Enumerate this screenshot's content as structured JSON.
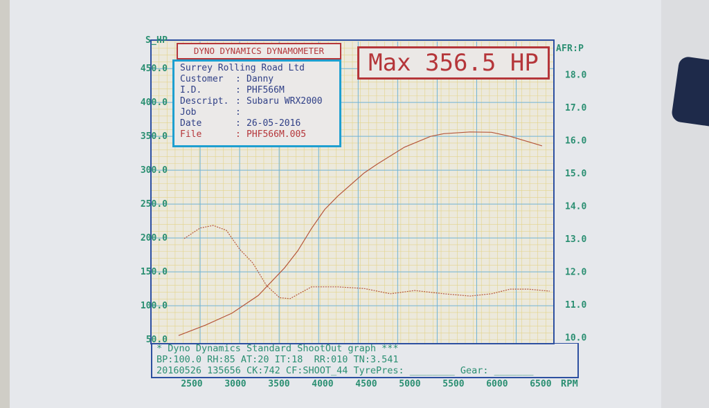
{
  "header": {
    "title": "DYNO DYNAMICS DYNAMOMETER",
    "max_label": "Max 356.5 HP"
  },
  "info": {
    "company": "Surrey Rolling Road Ltd",
    "rows": [
      {
        "label": "Customer",
        "value": "Danny"
      },
      {
        "label": "I.D.",
        "value": "PHF566M"
      },
      {
        "label": "Descript.",
        "value": "Subaru WRX2000"
      },
      {
        "label": "Job",
        "value": ""
      },
      {
        "label": "Date",
        "value": "26-05-2016"
      },
      {
        "label": "File",
        "value": "PHF566M.005"
      }
    ]
  },
  "footer": {
    "line1": "* Dyno Dynamics Standard ShootOut graph ***",
    "line2": "BP:100.0 RH:85 AT:20 IT:18  RR:010 TN:3.541",
    "line3": "20160526 135656 CK:742 CF:SHOOT_44 TyrePres: ________ Gear: _______"
  },
  "colors": {
    "frame": "#2c4fa0",
    "major_grid": "#6fb3d6",
    "minor_grid": "#e3d38a",
    "curve": "#b5563a",
    "axis_text": "#2b8f72",
    "highlight": "#b5363a",
    "info_border": "#1e9fd0"
  },
  "chart_data": {
    "type": "line",
    "xlabel": "RPM",
    "ylabel_left": "S_HP",
    "ylabel_right": "AFR:P",
    "xlim": [
      2000,
      6620
    ],
    "ylim_left": [
      44,
      490
    ],
    "ylim_right": [
      9.8,
      19.0
    ],
    "grid": true,
    "x_ticks": [
      "2500",
      "3000",
      "3500",
      "4000",
      "4500",
      "5000",
      "5500",
      "6000",
      "6500"
    ],
    "y_left_ticks": [
      "450.0",
      "400.0",
      "350.0",
      "300.0",
      "250.0",
      "200.0",
      "150.0",
      "100.0",
      "50.0"
    ],
    "y_right_ticks": [
      "18.0",
      "17.0",
      "16.0",
      "15.0",
      "14.0",
      "13.0",
      "12.0",
      "11.0",
      "10.0"
    ],
    "series": [
      {
        "axis": "left",
        "style": "solid",
        "x": [
          2317,
          2627,
          2929,
          3230,
          3532,
          3683,
          3841,
          3992,
          4143,
          4444,
          4595,
          4905,
          5206,
          5357,
          5659,
          5905,
          6119,
          6484
        ],
        "y": [
          56,
          71.5,
          89,
          115,
          156,
          181,
          214,
          242,
          262,
          296,
          309,
          334,
          350,
          354,
          356.5,
          356,
          350,
          336
        ]
      },
      {
        "axis": "right",
        "style": "dashed",
        "x": [
          2381,
          2563,
          2714,
          2865,
          3016,
          3167,
          3325,
          3476,
          3595,
          3841,
          4143,
          4444,
          4746,
          5024,
          5357,
          5659,
          5905,
          6119,
          6325,
          6571
        ],
        "y": [
          13.0,
          13.32,
          13.4,
          13.25,
          12.68,
          12.26,
          11.57,
          11.2,
          11.17,
          11.53,
          11.53,
          11.48,
          11.32,
          11.42,
          11.32,
          11.25,
          11.32,
          11.46,
          11.46,
          11.4
        ]
      }
    ]
  }
}
